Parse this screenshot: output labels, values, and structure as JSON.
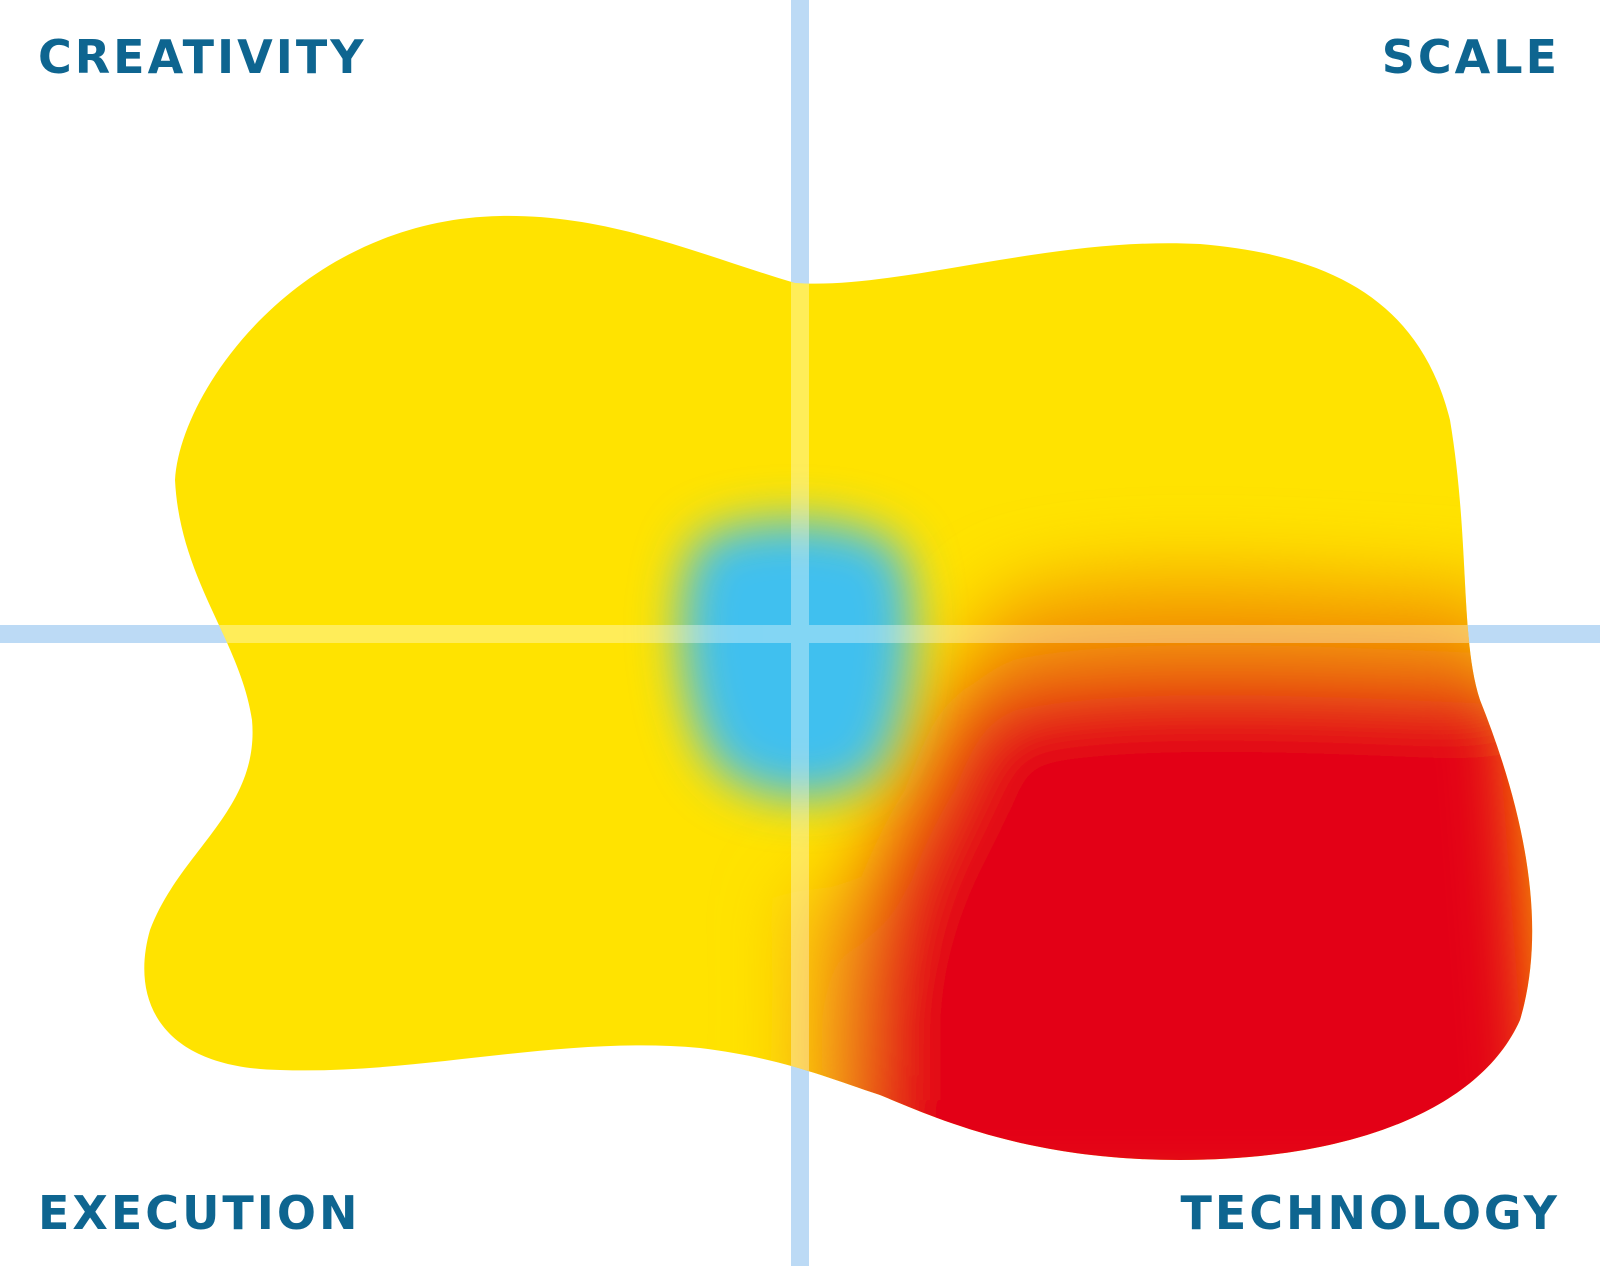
{
  "quadrants": {
    "top_left": "CREATIVITY",
    "top_right": "SCALE",
    "bottom_left": "EXECUTION",
    "bottom_right": "TECHNOLOGY"
  },
  "colors": {
    "label": "#0e6590",
    "axis": "#bcdaf5",
    "yellow": "#ffe600",
    "red": "#e30613",
    "blue": "#40c0ef",
    "orange": "#f39200"
  }
}
